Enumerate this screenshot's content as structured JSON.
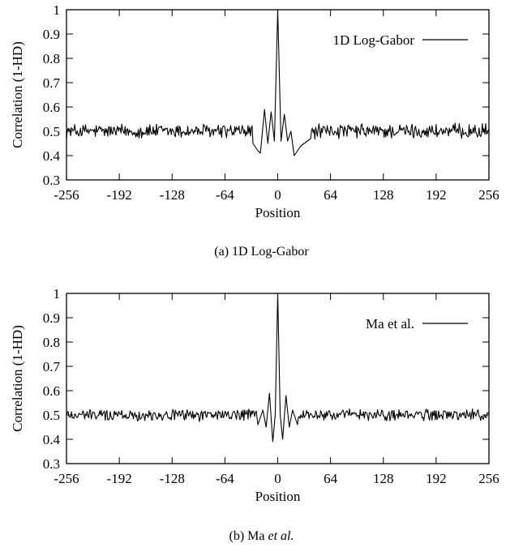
{
  "chart_data": [
    {
      "type": "line",
      "xlabel": "Position",
      "ylabel": "Correlation (1-HD)",
      "xlim": [
        -256,
        256
      ],
      "ylim": [
        0.3,
        1
      ],
      "xticks": [
        "-256",
        "-192",
        "-128",
        "-64",
        "0",
        "64",
        "128",
        "192",
        "256"
      ],
      "yticks": [
        "0.3",
        "0.4",
        "0.5",
        "0.6",
        "0.7",
        "0.8",
        "0.9",
        "1"
      ],
      "legend_position": "top-right",
      "grid": false,
      "caption": "(a)  1D Log-Gabor",
      "series": [
        {
          "name": "1D Log-Gabor",
          "baseline": 0.5,
          "noise_amplitude": 0.025,
          "peaks": [
            {
              "x": -30,
              "y": 0.45
            },
            {
              "x": -24,
              "y": 0.42
            },
            {
              "x": -21,
              "y": 0.41
            },
            {
              "x": -16,
              "y": 0.59
            },
            {
              "x": -12,
              "y": 0.45
            },
            {
              "x": -8,
              "y": 0.58
            },
            {
              "x": -4,
              "y": 0.46
            },
            {
              "x": 0,
              "y": 1.0
            },
            {
              "x": 4,
              "y": 0.46
            },
            {
              "x": 8,
              "y": 0.57
            },
            {
              "x": 12,
              "y": 0.46
            },
            {
              "x": 16,
              "y": 0.5
            },
            {
              "x": 20,
              "y": 0.4
            },
            {
              "x": 28,
              "y": 0.44
            },
            {
              "x": 40,
              "y": 0.47
            }
          ]
        }
      ]
    },
    {
      "type": "line",
      "xlabel": "Position",
      "ylabel": "Correlation (1-HD)",
      "xlim": [
        -256,
        256
      ],
      "ylim": [
        0.3,
        1
      ],
      "xticks": [
        "-256",
        "-192",
        "-128",
        "-64",
        "0",
        "64",
        "128",
        "192",
        "256"
      ],
      "yticks": [
        "0.3",
        "0.4",
        "0.5",
        "0.6",
        "0.7",
        "0.8",
        "0.9",
        "1"
      ],
      "legend_position": "top-right",
      "grid": false,
      "caption_prefix": "(b)  Ma ",
      "caption_italic": "et al.",
      "series": [
        {
          "name": "Ma et al.",
          "baseline": 0.5,
          "noise_amplitude": 0.02,
          "peaks": [
            {
              "x": -24,
              "y": 0.46
            },
            {
              "x": -18,
              "y": 0.52
            },
            {
              "x": -14,
              "y": 0.45
            },
            {
              "x": -10,
              "y": 0.59
            },
            {
              "x": -6,
              "y": 0.39
            },
            {
              "x": -3,
              "y": 0.5
            },
            {
              "x": 0,
              "y": 1.0
            },
            {
              "x": 3,
              "y": 0.5
            },
            {
              "x": 6,
              "y": 0.4
            },
            {
              "x": 10,
              "y": 0.58
            },
            {
              "x": 14,
              "y": 0.45
            },
            {
              "x": 18,
              "y": 0.52
            },
            {
              "x": 24,
              "y": 0.46
            }
          ]
        }
      ]
    }
  ]
}
